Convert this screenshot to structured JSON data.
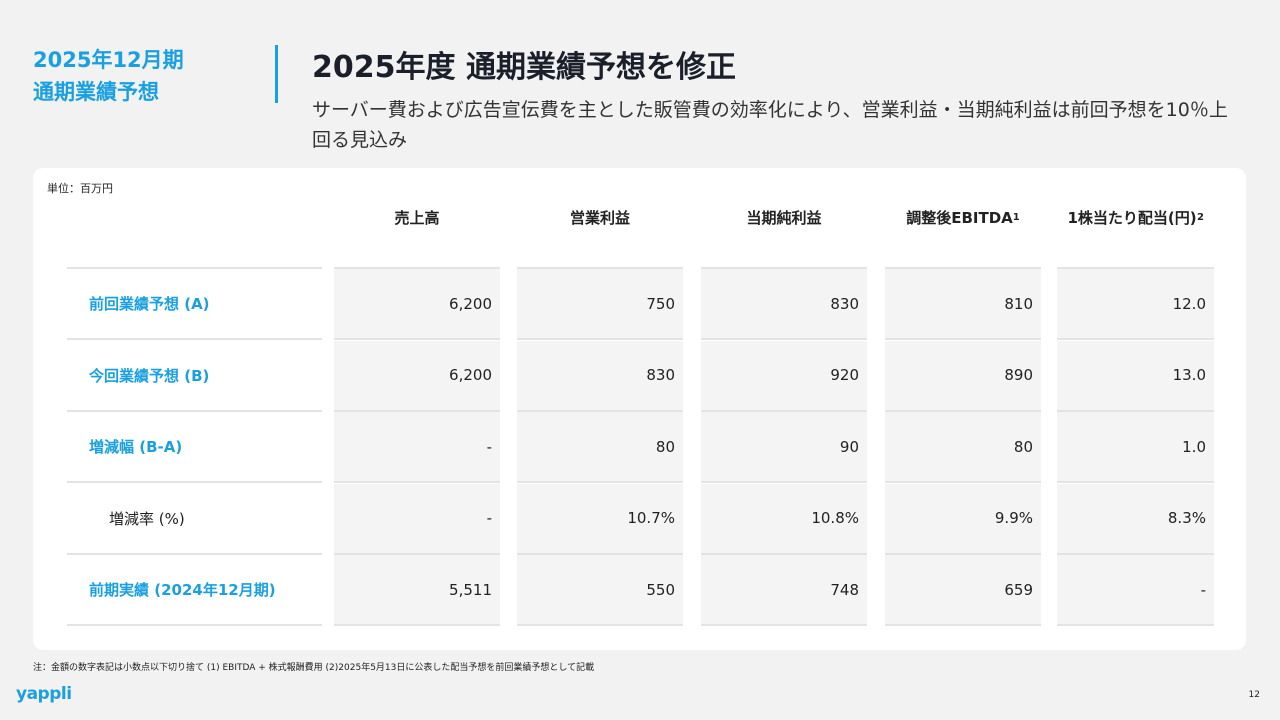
{
  "section": [
    "2025年12月期",
    "通期業績予想"
  ],
  "title": "2025年度 通期業績予想を修正",
  "subtitle": "サーバー費および広告宣伝費を主とした販管費の効率化により、営業利益・当期純利益は前回予想を10％上回る見込み",
  "unit": "単位：百万円",
  "columns": [
    {
      "label": "売上高",
      "sup": ""
    },
    {
      "label": "営業利益",
      "sup": ""
    },
    {
      "label": "当期純利益",
      "sup": ""
    },
    {
      "label": "調整後EBITDA",
      "sup": "1"
    },
    {
      "label": "1株当たり配当(円)",
      "sup": "2"
    }
  ],
  "rows": [
    {
      "label": "前回業績予想 (A)",
      "values": [
        "6,200",
        "750",
        "830",
        "810",
        "12.0"
      ],
      "accent": true
    },
    {
      "label": "今回業績予想 (B)",
      "values": [
        "6,200",
        "830",
        "920",
        "890",
        "13.0"
      ],
      "accent": true
    },
    {
      "label": "増減幅 (B-A)",
      "values": [
        "-",
        "80",
        "90",
        "80",
        "1.0"
      ],
      "accent": true
    },
    {
      "label": "増減率 (%)",
      "values": [
        "-",
        "10.7%",
        "10.8%",
        "9.9%",
        "8.3%"
      ],
      "accent": false
    },
    {
      "label": "前期実績 (2024年12月期)",
      "values": [
        "5,511",
        "550",
        "748",
        "659",
        "-"
      ],
      "accent": true
    }
  ],
  "note": "注：金額の数字表記は小数点以下切り捨て  (1) EBITDA + 株式報酬費用  (2)2025年5月13日に公表した配当予想を前回業績予想として記載",
  "logo": "yappli",
  "page": "12",
  "colors": {
    "accent": "#1aa0e0",
    "background": "#f2f2f2"
  }
}
